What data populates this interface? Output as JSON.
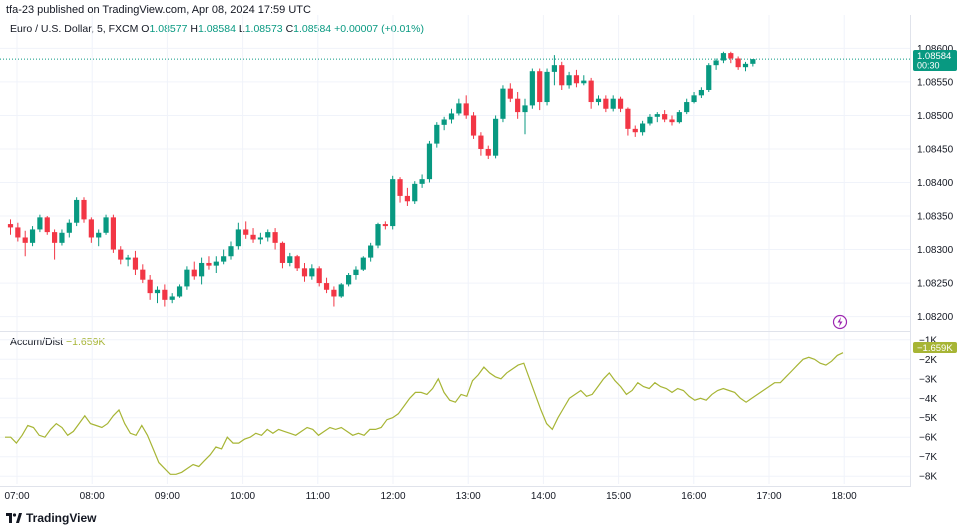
{
  "header": {
    "published": "tfa-23 published on TradingView.com, Apr 08, 2024 17:59 UTC",
    "symbol": "Euro / U.S. Dollar, 5, FXCM",
    "o_label": "O",
    "o": "1.08577",
    "h_label": "H",
    "h": "1.08584",
    "l_label": "L",
    "l": "1.08573",
    "c_label": "C",
    "c": "1.08584",
    "change": "+0.00007 (+0.01%)"
  },
  "indicator": {
    "name": "Accum/Dist",
    "value": "−1.659K"
  },
  "price_badge": {
    "price": "1.08584",
    "countdown": "00:30"
  },
  "ad_badge": "−1.659K",
  "footer": {
    "brand": "TradingView"
  },
  "colors": {
    "up": "#089981",
    "down": "#f23645",
    "ad_line": "#a7b535",
    "grid": "#f0f3fa"
  },
  "icons": [
    "tradingview-logo-icon",
    "lightning-icon"
  ],
  "chart_data": [
    {
      "type": "candlestick",
      "title": "Euro / U.S. Dollar, 5, FXCM",
      "x_tick_labels": [
        "07:00",
        "08:00",
        "09:00",
        "10:00",
        "11:00",
        "12:00",
        "13:00",
        "14:00",
        "15:00",
        "16:00",
        "17:00",
        "18:00"
      ],
      "y_tick_labels": [
        "1.08600",
        "1.08550",
        "1.08500",
        "1.08450",
        "1.08400",
        "1.08350",
        "1.08300",
        "1.08250",
        "1.08200"
      ],
      "ylim": [
        1.0818,
        1.0862
      ],
      "last_price": 1.08584,
      "candles": [
        [
          1.08338,
          1.08345,
          1.08322,
          1.08333
        ],
        [
          1.08333,
          1.0834,
          1.08312,
          1.08318
        ],
        [
          1.08318,
          1.08328,
          1.0829,
          1.0831
        ],
        [
          1.0831,
          1.08335,
          1.08305,
          1.0833
        ],
        [
          1.0833,
          1.08352,
          1.08326,
          1.08348
        ],
        [
          1.08348,
          1.0835,
          1.08322,
          1.08326
        ],
        [
          1.08326,
          1.0833,
          1.08285,
          1.0831
        ],
        [
          1.0831,
          1.0833,
          1.08306,
          1.08325
        ],
        [
          1.08325,
          1.08345,
          1.08318,
          1.0834
        ],
        [
          1.0834,
          1.08378,
          1.08335,
          1.08374
        ],
        [
          1.08374,
          1.08378,
          1.0834,
          1.08345
        ],
        [
          1.08345,
          1.08348,
          1.0831,
          1.08318
        ],
        [
          1.08318,
          1.0833,
          1.08305,
          1.08325
        ],
        [
          1.08325,
          1.08352,
          1.08322,
          1.08348
        ],
        [
          1.08348,
          1.08352,
          1.08295,
          1.083
        ],
        [
          1.083,
          1.08305,
          1.08278,
          1.08285
        ],
        [
          1.08285,
          1.08292,
          1.08275,
          1.08288
        ],
        [
          1.08288,
          1.08298,
          1.08262,
          1.0827
        ],
        [
          1.0827,
          1.08278,
          1.0825,
          1.08255
        ],
        [
          1.08255,
          1.08262,
          1.08225,
          1.08235
        ],
        [
          1.08235,
          1.08245,
          1.0822,
          1.0824
        ],
        [
          1.0824,
          1.08248,
          1.08215,
          1.08225
        ],
        [
          1.08225,
          1.08235,
          1.0822,
          1.0823
        ],
        [
          1.0823,
          1.08248,
          1.08228,
          1.08245
        ],
        [
          1.08245,
          1.08275,
          1.0824,
          1.0827
        ],
        [
          1.0827,
          1.08282,
          1.08255,
          1.0826
        ],
        [
          1.0826,
          1.08288,
          1.08248,
          1.0828
        ],
        [
          1.0828,
          1.0829,
          1.0827,
          1.08276
        ],
        [
          1.08276,
          1.0829,
          1.08265,
          1.08282
        ],
        [
          1.08282,
          1.083,
          1.08278,
          1.0829
        ],
        [
          1.0829,
          1.08312,
          1.08285,
          1.08305
        ],
        [
          1.08305,
          1.0834,
          1.083,
          1.0833
        ],
        [
          1.0833,
          1.08342,
          1.08316,
          1.08322
        ],
        [
          1.08322,
          1.08332,
          1.0831,
          1.08315
        ],
        [
          1.08315,
          1.08325,
          1.08308,
          1.08318
        ],
        [
          1.08318,
          1.0833,
          1.08312,
          1.08326
        ],
        [
          1.08326,
          1.08332,
          1.083,
          1.0831
        ],
        [
          1.0831,
          1.08312,
          1.08272,
          1.0828
        ],
        [
          1.0828,
          1.08295,
          1.08275,
          1.0829
        ],
        [
          1.0829,
          1.08292,
          1.08268,
          1.08272
        ],
        [
          1.08272,
          1.0828,
          1.08252,
          1.0826
        ],
        [
          1.0826,
          1.08278,
          1.08255,
          1.08272
        ],
        [
          1.08272,
          1.08275,
          1.08245,
          1.0825
        ],
        [
          1.0825,
          1.08258,
          1.08235,
          1.0824
        ],
        [
          1.0824,
          1.08245,
          1.08215,
          1.0823
        ],
        [
          1.0823,
          1.0825,
          1.08228,
          1.08248
        ],
        [
          1.08248,
          1.08265,
          1.08245,
          1.08262
        ],
        [
          1.08262,
          1.08275,
          1.08255,
          1.0827
        ],
        [
          1.0827,
          1.0829,
          1.08268,
          1.08288
        ],
        [
          1.08288,
          1.0831,
          1.08282,
          1.08306
        ],
        [
          1.08306,
          1.0834,
          1.08302,
          1.08338
        ],
        [
          1.08338,
          1.08342,
          1.0833,
          1.08335
        ],
        [
          1.08335,
          1.0841,
          1.0833,
          1.08405
        ],
        [
          1.08405,
          1.08408,
          1.0837,
          1.0838
        ],
        [
          1.0838,
          1.08392,
          1.08365,
          1.08372
        ],
        [
          1.08372,
          1.08402,
          1.08368,
          1.08398
        ],
        [
          1.08398,
          1.08412,
          1.08392,
          1.08405
        ],
        [
          1.08405,
          1.08462,
          1.084,
          1.08458
        ],
        [
          1.08458,
          1.0849,
          1.08452,
          1.08486
        ],
        [
          1.08486,
          1.08498,
          1.08478,
          1.08494
        ],
        [
          1.08494,
          1.0851,
          1.08488,
          1.08503
        ],
        [
          1.08503,
          1.08525,
          1.085,
          1.08518
        ],
        [
          1.08518,
          1.0853,
          1.08495,
          1.085
        ],
        [
          1.085,
          1.08505,
          1.08465,
          1.0847
        ],
        [
          1.0847,
          1.08475,
          1.0844,
          1.0845
        ],
        [
          1.0845,
          1.08455,
          1.08435,
          1.0844
        ],
        [
          1.0844,
          1.085,
          1.08436,
          1.08495
        ],
        [
          1.08495,
          1.08545,
          1.0849,
          1.0854
        ],
        [
          1.0854,
          1.08548,
          1.0852,
          1.08525
        ],
        [
          1.08525,
          1.08535,
          1.08495,
          1.08505
        ],
        [
          1.08505,
          1.08525,
          1.08472,
          1.08515
        ],
        [
          1.08515,
          1.0857,
          1.0851,
          1.08566
        ],
        [
          1.08566,
          1.0857,
          1.08508,
          1.0852
        ],
        [
          1.0852,
          1.0857,
          1.08515,
          1.08565
        ],
        [
          1.08565,
          1.0859,
          1.08545,
          1.08575
        ],
        [
          1.08575,
          1.0858,
          1.08538,
          1.08545
        ],
        [
          1.08545,
          1.08565,
          1.0854,
          1.0856
        ],
        [
          1.0856,
          1.08568,
          1.08542,
          1.08548
        ],
        [
          1.08548,
          1.0856,
          1.08545,
          1.08552
        ],
        [
          1.08552,
          1.08556,
          1.0851,
          1.0852
        ],
        [
          1.0852,
          1.0853,
          1.08515,
          1.08525
        ],
        [
          1.08525,
          1.0853,
          1.08505,
          1.0851
        ],
        [
          1.0851,
          1.0853,
          1.08506,
          1.08525
        ],
        [
          1.08525,
          1.08528,
          1.08505,
          1.0851
        ],
        [
          1.0851,
          1.08512,
          1.0847,
          1.0848
        ],
        [
          1.0848,
          1.08485,
          1.08468,
          1.08475
        ],
        [
          1.08475,
          1.08492,
          1.0847,
          1.08488
        ],
        [
          1.08488,
          1.08502,
          1.08485,
          1.08498
        ],
        [
          1.08498,
          1.08505,
          1.0849,
          1.08502
        ],
        [
          1.08502,
          1.08508,
          1.0849,
          1.08494
        ],
        [
          1.08494,
          1.085,
          1.08485,
          1.0849
        ],
        [
          1.0849,
          1.08508,
          1.08488,
          1.08505
        ],
        [
          1.08505,
          1.08525,
          1.08502,
          1.0852
        ],
        [
          1.0852,
          1.08535,
          1.08518,
          1.0853
        ],
        [
          1.0853,
          1.08542,
          1.08526,
          1.08538
        ],
        [
          1.08538,
          1.08578,
          1.08535,
          1.08575
        ],
        [
          1.08575,
          1.08585,
          1.08568,
          1.08582
        ],
        [
          1.08582,
          1.08595,
          1.08578,
          1.08593
        ],
        [
          1.08593,
          1.08595,
          1.08578,
          1.08585
        ],
        [
          1.08585,
          1.08588,
          1.08568,
          1.08572
        ],
        [
          1.08572,
          1.0858,
          1.08566,
          1.08577
        ],
        [
          1.08577,
          1.08584,
          1.08573,
          1.08584
        ]
      ]
    },
    {
      "type": "line",
      "title": "Accum/Dist",
      "y_tick_labels": [
        "−1K",
        "−2K",
        "−3K",
        "−4K",
        "−5K",
        "−6K",
        "−7K",
        "−8K"
      ],
      "ylim": [
        -8.4,
        -0.6
      ],
      "series": [
        {
          "name": "Accum/Dist",
          "values": [
            -6.0,
            -6.0,
            -6.3,
            -5.9,
            -5.4,
            -5.5,
            -5.9,
            -6.0,
            -5.6,
            -5.3,
            -5.5,
            -5.9,
            -5.7,
            -5.3,
            -4.9,
            -5.3,
            -5.4,
            -5.5,
            -5.3,
            -4.9,
            -4.6,
            -5.3,
            -5.8,
            -5.9,
            -5.4,
            -5.9,
            -6.6,
            -7.3,
            -7.6,
            -7.9,
            -7.9,
            -7.8,
            -7.6,
            -7.4,
            -7.5,
            -7.2,
            -6.9,
            -6.5,
            -6.6,
            -6.0,
            -6.3,
            -6.3,
            -6.1,
            -6.0,
            -5.8,
            -5.9,
            -5.6,
            -5.8,
            -5.6,
            -5.7,
            -5.8,
            -5.9,
            -5.7,
            -5.5,
            -5.6,
            -5.9,
            -5.7,
            -5.5,
            -5.6,
            -5.5,
            -5.7,
            -5.9,
            -5.8,
            -5.9,
            -5.6,
            -5.6,
            -5.5,
            -5.1,
            -5.0,
            -4.8,
            -4.4,
            -4.0,
            -3.7,
            -3.7,
            -3.8,
            -3.5,
            -3.0,
            -3.7,
            -4.1,
            -4.2,
            -3.8,
            -3.9,
            -3.1,
            -2.8,
            -2.4,
            -2.7,
            -2.9,
            -3.0,
            -2.7,
            -2.5,
            -2.3,
            -2.2,
            -3.0,
            -3.8,
            -4.6,
            -5.3,
            -5.6,
            -5.0,
            -4.5,
            -4.0,
            -3.8,
            -3.6,
            -3.9,
            -3.8,
            -3.4,
            -3.0,
            -2.7,
            -3.1,
            -3.4,
            -3.8,
            -3.6,
            -3.2,
            -3.4,
            -3.5,
            -3.2,
            -3.4,
            -3.5,
            -3.7,
            -3.5,
            -3.6,
            -3.9,
            -4.1,
            -4.0,
            -4.1,
            -3.8,
            -3.6,
            -3.5,
            -3.6,
            -3.7,
            -4.0,
            -4.2,
            -4.0,
            -3.8,
            -3.6,
            -3.4,
            -3.2,
            -3.2,
            -2.9,
            -2.6,
            -2.3,
            -2.0,
            -1.9,
            -2.0,
            -2.2,
            -2.3,
            -2.1,
            -1.8,
            -1.66
          ]
        }
      ]
    }
  ]
}
